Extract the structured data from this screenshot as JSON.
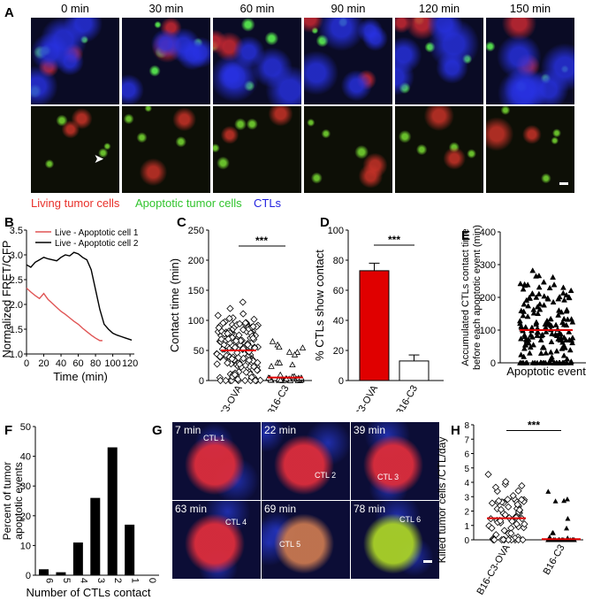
{
  "panels": {
    "A": "A",
    "B": "B",
    "C": "C",
    "D": "D",
    "E": "E",
    "F": "F",
    "G": "G",
    "H": "H"
  },
  "panelA": {
    "times": [
      "0 min",
      "30 min",
      "60 min",
      "90 min",
      "120 min",
      "150 min"
    ],
    "legend": {
      "living": "Living tumor cells",
      "apoptotic": "Apoptotic tumor cells",
      "ctls": "CTLs"
    },
    "colors": {
      "living": "#e8302a",
      "apoptotic": "#3fd43a",
      "ctls": "#2a2ae0"
    }
  },
  "panelG": {
    "times": [
      "7 min",
      "22 min",
      "39 min",
      "63 min",
      "69 min",
      "78 min"
    ],
    "ctl_labels": [
      "CTL 1",
      "CTL 2",
      "CTL 3",
      "CTL 4",
      "CTL 5",
      "CTL 6"
    ]
  },
  "chart_data": [
    {
      "id": "B",
      "type": "line",
      "xlabel": "Time (min)",
      "ylabel": "Normalized FRET/CFP",
      "xlim": [
        0,
        125
      ],
      "ylim": [
        1.0,
        3.5
      ],
      "xticks": [
        "0",
        "20",
        "40",
        "60",
        "80",
        "100",
        "120"
      ],
      "yticks": [
        "1.0",
        "1.5",
        "2.0",
        "2.5",
        "3.0",
        "3.5"
      ],
      "series": [
        {
          "name": "Live - Apoptotic cell 1",
          "color": "#e05555",
          "x": [
            0,
            5,
            10,
            15,
            20,
            25,
            30,
            35,
            40,
            45,
            50,
            55,
            60,
            65,
            70,
            75,
            80,
            85,
            88
          ],
          "y": [
            2.33,
            2.25,
            2.18,
            2.12,
            2.22,
            2.1,
            2.02,
            1.94,
            1.86,
            1.8,
            1.73,
            1.66,
            1.6,
            1.52,
            1.45,
            1.38,
            1.32,
            1.27,
            1.27
          ]
        },
        {
          "name": "Live - Apoptotic cell 2",
          "color": "#000000",
          "x": [
            0,
            5,
            10,
            15,
            20,
            25,
            30,
            35,
            40,
            45,
            50,
            55,
            60,
            65,
            70,
            75,
            80,
            85,
            90,
            95,
            100,
            105,
            110,
            115,
            122
          ],
          "y": [
            2.8,
            2.75,
            2.85,
            2.9,
            2.95,
            2.92,
            2.9,
            2.88,
            2.95,
            3.0,
            2.98,
            3.05,
            3.02,
            2.95,
            2.9,
            2.7,
            2.3,
            1.9,
            1.6,
            1.5,
            1.42,
            1.38,
            1.35,
            1.32,
            1.28
          ]
        }
      ]
    },
    {
      "id": "C",
      "type": "scatter",
      "ylabel": "Contact time (min)",
      "ylim": [
        0,
        250
      ],
      "yticks": [
        "0",
        "50",
        "100",
        "150",
        "200",
        "250"
      ],
      "categories": [
        "B16-C3-OVA",
        "B16-C3"
      ],
      "means": [
        50,
        5
      ],
      "significance": "***"
    },
    {
      "id": "D",
      "type": "bar",
      "ylabel": "% CTLs show contact",
      "ylim": [
        0,
        100
      ],
      "yticks": [
        "0",
        "20",
        "40",
        "60",
        "80",
        "100"
      ],
      "categories": [
        "B16-C3-OVA",
        "B16-C3"
      ],
      "values": [
        73,
        13
      ],
      "errors": [
        5,
        4
      ],
      "colors": [
        "#e00000",
        "#ffffff"
      ],
      "significance": "***"
    },
    {
      "id": "E",
      "type": "scatter",
      "ylabel_line1": "Accumulated CTLs contact time",
      "ylabel_line2": "before each apoptotic event (min)",
      "ylim": [
        0,
        400
      ],
      "yticks": [
        "0",
        "100",
        "200",
        "300",
        "400"
      ],
      "xlabel": "Apoptotic event",
      "mean": 100
    },
    {
      "id": "F",
      "type": "bar",
      "ylabel_line1": "Percent of tumor",
      "ylabel_line2": "apoptotic events",
      "xlabel": "Number of CTLs contact",
      "categories": [
        "6",
        "5",
        "4",
        "3",
        "2",
        "1",
        "0"
      ],
      "values": [
        2,
        1,
        11,
        26,
        43,
        17,
        0
      ],
      "ylim": [
        0,
        50
      ],
      "yticks": [
        "0",
        "10",
        "20",
        "30",
        "40",
        "50"
      ]
    },
    {
      "id": "H",
      "type": "scatter",
      "ylabel": "Killed tumor cells /CTL/day",
      "ylim": [
        0,
        8
      ],
      "yticks": [
        "0",
        "1",
        "2",
        "3",
        "4",
        "5",
        "6",
        "7",
        "8"
      ],
      "categories": [
        "B16-C3-OVA",
        "B16-C3"
      ],
      "means": [
        1.5,
        0.05
      ],
      "significance": "***"
    }
  ]
}
